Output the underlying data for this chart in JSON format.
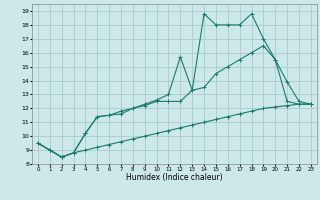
{
  "xlabel": "Humidex (Indice chaleur)",
  "bg_color": "#cce8e8",
  "grid_color": "#aacccc",
  "line_color": "#1a7a6e",
  "xlim": [
    -0.5,
    23.5
  ],
  "ylim": [
    8,
    19.5
  ],
  "xticks": [
    0,
    1,
    2,
    3,
    4,
    5,
    6,
    7,
    8,
    9,
    10,
    11,
    12,
    13,
    14,
    15,
    16,
    17,
    18,
    19,
    20,
    21,
    22,
    23
  ],
  "yticks": [
    8,
    9,
    10,
    11,
    12,
    13,
    14,
    15,
    16,
    17,
    18,
    19
  ],
  "line1_x": [
    0,
    1,
    2,
    3,
    4,
    5,
    6,
    7,
    8,
    9,
    10,
    11,
    12,
    13,
    14,
    15,
    16,
    17,
    18,
    19,
    20,
    21,
    22,
    23
  ],
  "line1_y": [
    9.5,
    9.0,
    8.5,
    8.8,
    10.2,
    11.4,
    11.5,
    11.6,
    12.0,
    12.3,
    12.6,
    13.0,
    15.7,
    13.3,
    18.8,
    18.0,
    18.0,
    18.0,
    18.8,
    17.0,
    15.5,
    13.9,
    12.5,
    12.3
  ],
  "line2_x": [
    0,
    1,
    2,
    3,
    4,
    5,
    6,
    7,
    8,
    9,
    10,
    11,
    12,
    13,
    14,
    15,
    16,
    17,
    18,
    19,
    20,
    21,
    22,
    23
  ],
  "line2_y": [
    9.5,
    9.0,
    8.5,
    8.8,
    10.2,
    11.4,
    11.5,
    11.8,
    12.0,
    12.2,
    12.5,
    12.5,
    12.5,
    13.3,
    13.5,
    14.5,
    15.0,
    15.5,
    16.0,
    16.5,
    15.5,
    12.5,
    12.3,
    12.3
  ],
  "line3_x": [
    0,
    1,
    2,
    3,
    4,
    5,
    6,
    7,
    8,
    9,
    10,
    11,
    12,
    13,
    14,
    15,
    16,
    17,
    18,
    19,
    20,
    21,
    22,
    23
  ],
  "line3_y": [
    9.5,
    9.0,
    8.5,
    8.8,
    9.0,
    9.2,
    9.4,
    9.6,
    9.8,
    10.0,
    10.2,
    10.4,
    10.6,
    10.8,
    11.0,
    11.2,
    11.4,
    11.6,
    11.8,
    12.0,
    12.1,
    12.2,
    12.3,
    12.3
  ]
}
